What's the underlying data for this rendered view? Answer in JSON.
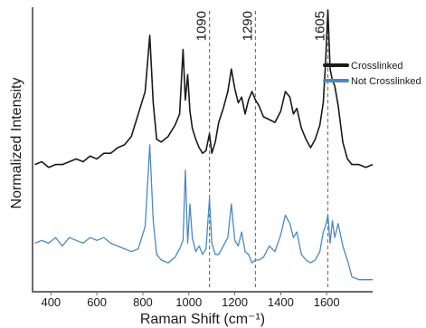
{
  "chart_data": {
    "type": "line",
    "title": "",
    "xlabel": "Raman Shift (cm⁻¹)",
    "ylabel": "Normalized Intensity",
    "xlim": [
      320,
      1800
    ],
    "ylim": [
      0,
      1
    ],
    "x_ticks": [
      400,
      600,
      800,
      1000,
      1200,
      1400,
      1600
    ],
    "legend_position": "top-right",
    "grid": false,
    "annotations": [
      {
        "label": "1090",
        "x": 1090
      },
      {
        "label": "1290",
        "x": 1290
      },
      {
        "label": "1605",
        "x": 1605
      }
    ],
    "series": [
      {
        "name": "Crosslinked",
        "color": "#1a1a1a",
        "x": [
          330,
          360,
          390,
          420,
          450,
          480,
          510,
          540,
          570,
          600,
          630,
          660,
          690,
          720,
          750,
          780,
          810,
          830,
          845,
          860,
          880,
          910,
          940,
          960,
          975,
          985,
          995,
          1005,
          1015,
          1030,
          1045,
          1060,
          1075,
          1090,
          1100,
          1115,
          1130,
          1150,
          1170,
          1185,
          1200,
          1215,
          1230,
          1245,
          1260,
          1275,
          1290,
          1305,
          1325,
          1350,
          1375,
          1400,
          1420,
          1440,
          1455,
          1470,
          1490,
          1510,
          1530,
          1550,
          1570,
          1585,
          1595,
          1605,
          1615,
          1625,
          1635,
          1650,
          1670,
          1690,
          1710,
          1740,
          1770,
          1800
        ],
        "y": [
          0.44,
          0.45,
          0.43,
          0.44,
          0.44,
          0.45,
          0.46,
          0.45,
          0.47,
          0.46,
          0.48,
          0.48,
          0.5,
          0.51,
          0.54,
          0.62,
          0.7,
          0.9,
          0.66,
          0.53,
          0.52,
          0.54,
          0.58,
          0.62,
          0.85,
          0.67,
          0.76,
          0.63,
          0.57,
          0.53,
          0.5,
          0.48,
          0.49,
          0.55,
          0.48,
          0.52,
          0.59,
          0.64,
          0.7,
          0.78,
          0.71,
          0.66,
          0.68,
          0.62,
          0.67,
          0.7,
          0.67,
          0.65,
          0.61,
          0.6,
          0.59,
          0.63,
          0.7,
          0.68,
          0.62,
          0.64,
          0.57,
          0.53,
          0.5,
          0.53,
          0.58,
          0.66,
          0.8,
          0.99,
          0.78,
          0.74,
          0.72,
          0.65,
          0.52,
          0.46,
          0.44,
          0.44,
          0.43,
          0.44
        ]
      },
      {
        "name": "Not Crosslinked",
        "color": "#4a8ac0",
        "x": [
          330,
          360,
          390,
          420,
          450,
          480,
          510,
          540,
          570,
          600,
          630,
          660,
          690,
          720,
          750,
          780,
          810,
          830,
          845,
          860,
          880,
          910,
          940,
          960,
          975,
          985,
          995,
          1005,
          1015,
          1030,
          1045,
          1060,
          1075,
          1090,
          1100,
          1115,
          1130,
          1150,
          1170,
          1185,
          1200,
          1215,
          1230,
          1245,
          1260,
          1275,
          1290,
          1305,
          1325,
          1350,
          1375,
          1400,
          1420,
          1440,
          1455,
          1470,
          1490,
          1510,
          1530,
          1550,
          1570,
          1585,
          1595,
          1605,
          1615,
          1625,
          1635,
          1650,
          1670,
          1690,
          1710,
          1740,
          1770,
          1800
        ],
        "y": [
          0.16,
          0.17,
          0.16,
          0.18,
          0.15,
          0.18,
          0.17,
          0.16,
          0.18,
          0.17,
          0.18,
          0.16,
          0.15,
          0.14,
          0.13,
          0.14,
          0.22,
          0.51,
          0.24,
          0.12,
          0.1,
          0.09,
          0.11,
          0.14,
          0.17,
          0.42,
          0.16,
          0.3,
          0.18,
          0.13,
          0.15,
          0.12,
          0.14,
          0.32,
          0.16,
          0.12,
          0.12,
          0.15,
          0.18,
          0.3,
          0.17,
          0.15,
          0.2,
          0.13,
          0.12,
          0.09,
          0.1,
          0.1,
          0.11,
          0.15,
          0.13,
          0.19,
          0.26,
          0.23,
          0.18,
          0.2,
          0.12,
          0.1,
          0.09,
          0.1,
          0.13,
          0.2,
          0.22,
          0.26,
          0.16,
          0.24,
          0.18,
          0.23,
          0.15,
          0.1,
          0.04,
          0.03,
          0.03,
          0.03
        ]
      }
    ]
  }
}
